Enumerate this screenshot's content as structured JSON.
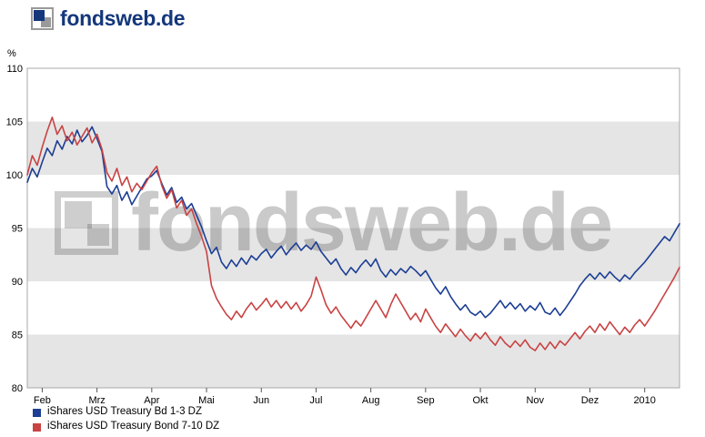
{
  "header": {
    "logo_text_bold": "fonds",
    "logo_text_rest": "web.de"
  },
  "watermark": {
    "text": "fondsweb.de"
  },
  "chart_data": {
    "type": "line",
    "title": "",
    "ylabel": "%",
    "ylim": [
      80,
      110
    ],
    "yticks": [
      80,
      85,
      90,
      95,
      100,
      105,
      110
    ],
    "bands": [
      [
        80,
        85
      ],
      [
        90,
        95
      ],
      [
        100,
        105
      ]
    ],
    "band_color": "#e5e5e5",
    "frame_color": "#a8a8a8",
    "months": [
      "Feb",
      "Mrz",
      "Apr",
      "Mai",
      "Jun",
      "Jul",
      "Aug",
      "Sep",
      "Okt",
      "Nov",
      "Dez",
      "2010"
    ],
    "month_tick_indices": [
      3,
      14,
      25,
      36,
      47,
      58,
      69,
      80,
      91,
      102,
      113,
      124
    ],
    "legend_position": "bottom-left",
    "grid": "horizontal-bands",
    "series": [
      {
        "name": "iShares USD Treasury Bd 1-3 DZ",
        "color": "#1c3e94",
        "values": [
          99.3,
          100.6,
          99.8,
          101.2,
          102.5,
          101.8,
          103.2,
          102.4,
          103.6,
          102.9,
          104.2,
          103.1,
          103.7,
          104.5,
          103.4,
          102.2,
          98.9,
          98.2,
          99.0,
          97.6,
          98.4,
          97.2,
          98.0,
          98.8,
          99.6,
          99.9,
          100.4,
          99.2,
          98.1,
          98.8,
          97.4,
          97.9,
          96.8,
          97.3,
          96.2,
          95.1,
          93.8,
          92.6,
          93.2,
          91.8,
          91.2,
          92.0,
          91.4,
          92.2,
          91.6,
          92.4,
          92.0,
          92.6,
          93.0,
          92.2,
          92.8,
          93.3,
          92.5,
          93.1,
          93.6,
          92.9,
          93.4,
          93.0,
          93.7,
          92.8,
          92.2,
          91.6,
          92.1,
          91.2,
          90.6,
          91.3,
          90.8,
          91.5,
          92.0,
          91.4,
          92.1,
          91.0,
          90.4,
          91.1,
          90.6,
          91.2,
          90.8,
          91.4,
          91.0,
          90.5,
          91.0,
          90.2,
          89.4,
          88.8,
          89.5,
          88.6,
          87.9,
          87.3,
          87.8,
          87.1,
          86.8,
          87.2,
          86.6,
          87.0,
          87.6,
          88.2,
          87.5,
          88.0,
          87.4,
          87.9,
          87.2,
          87.7,
          87.3,
          88.0,
          87.1,
          86.9,
          87.5,
          86.8,
          87.4,
          88.1,
          88.8,
          89.6,
          90.2,
          90.7,
          90.2,
          90.8,
          90.3,
          90.9,
          90.4,
          90.0,
          90.6,
          90.2,
          90.8,
          91.3,
          91.8,
          92.4,
          93.0,
          93.6,
          94.2,
          93.8,
          94.6,
          95.4
        ]
      },
      {
        "name": "iShares USD Treasury Bond 7-10 DZ",
        "color": "#c94343",
        "values": [
          100.0,
          101.8,
          100.9,
          102.6,
          104.1,
          105.4,
          103.8,
          104.6,
          103.2,
          104.0,
          102.8,
          103.6,
          104.4,
          103.0,
          103.8,
          102.4,
          100.2,
          99.4,
          100.6,
          99.0,
          99.8,
          98.4,
          99.2,
          98.6,
          99.4,
          100.2,
          100.8,
          99.0,
          97.8,
          98.6,
          96.9,
          97.6,
          96.2,
          96.8,
          95.4,
          94.2,
          92.8,
          89.6,
          88.4,
          87.6,
          86.9,
          86.4,
          87.2,
          86.6,
          87.4,
          88.0,
          87.3,
          87.8,
          88.4,
          87.6,
          88.2,
          87.5,
          88.1,
          87.4,
          88.0,
          87.2,
          87.8,
          88.6,
          90.4,
          89.2,
          87.8,
          87.0,
          87.6,
          86.8,
          86.2,
          85.6,
          86.3,
          85.8,
          86.6,
          87.4,
          88.2,
          87.4,
          86.6,
          87.8,
          88.8,
          88.0,
          87.2,
          86.4,
          87.0,
          86.2,
          87.4,
          86.6,
          85.8,
          85.2,
          86.0,
          85.4,
          84.8,
          85.5,
          84.9,
          84.4,
          85.1,
          84.6,
          85.2,
          84.5,
          84.0,
          84.8,
          84.2,
          83.8,
          84.4,
          83.9,
          84.5,
          83.8,
          83.5,
          84.2,
          83.6,
          84.3,
          83.7,
          84.4,
          84.0,
          84.6,
          85.2,
          84.6,
          85.3,
          85.8,
          85.2,
          86.0,
          85.4,
          86.2,
          85.6,
          85.0,
          85.7,
          85.2,
          85.9,
          86.4,
          85.8,
          86.5,
          87.2,
          88.0,
          88.8,
          89.6,
          90.4,
          91.3
        ]
      }
    ]
  }
}
